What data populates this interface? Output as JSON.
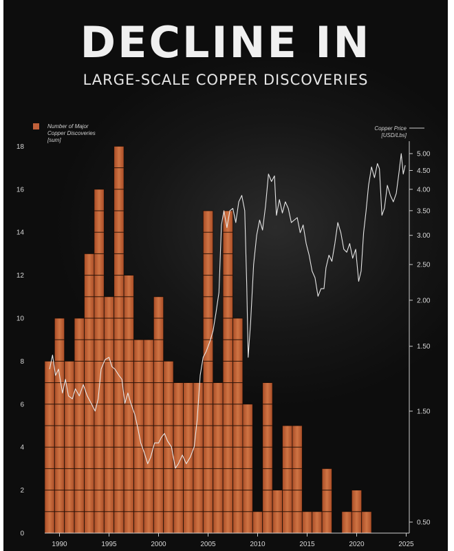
{
  "title": "DECLINE IN",
  "subtitle": "LARGE-SCALE COPPER DISCOVERIES",
  "colors": {
    "bar": "#b8582e",
    "bar_light": "#cf7444",
    "price_line": "#e8e8e8",
    "background": "#121212"
  },
  "chart_data": {
    "type": "bar",
    "x": [
      1989,
      1990,
      1991,
      1992,
      1993,
      1994,
      1995,
      1996,
      1997,
      1998,
      1999,
      2000,
      2001,
      2002,
      2003,
      2004,
      2005,
      2006,
      2007,
      2008,
      2009,
      2010,
      2011,
      2012,
      2013,
      2014,
      2015,
      2016,
      2017,
      2018,
      2019,
      2020,
      2021,
      2022,
      2023,
      2024
    ],
    "series": [
      {
        "name": "Number of Major Copper Discoveries [sum]",
        "axis": "left",
        "values": [
          8,
          10,
          8,
          10,
          13,
          16,
          11,
          18,
          12,
          9,
          9,
          11,
          8,
          7,
          7,
          7,
          15,
          7,
          15,
          10,
          6,
          1,
          7,
          2,
          5,
          5,
          1,
          1,
          3,
          0,
          1,
          2,
          1,
          0,
          0,
          0
        ]
      },
      {
        "name": "Copper Price [USD/Lbs]",
        "axis": "right",
        "points": [
          [
            1989.0,
            1.3
          ],
          [
            1989.3,
            1.42
          ],
          [
            1989.6,
            1.25
          ],
          [
            1989.9,
            1.3
          ],
          [
            1990.3,
            1.12
          ],
          [
            1990.6,
            1.22
          ],
          [
            1990.9,
            1.1
          ],
          [
            1991.3,
            1.08
          ],
          [
            1991.6,
            1.15
          ],
          [
            1992.0,
            1.1
          ],
          [
            1992.4,
            1.18
          ],
          [
            1992.8,
            1.1
          ],
          [
            1993.2,
            1.05
          ],
          [
            1993.6,
            1.0
          ],
          [
            1993.9,
            1.08
          ],
          [
            1994.2,
            1.3
          ],
          [
            1994.6,
            1.38
          ],
          [
            1995.0,
            1.4
          ],
          [
            1995.3,
            1.32
          ],
          [
            1995.6,
            1.3
          ],
          [
            1996.0,
            1.25
          ],
          [
            1996.3,
            1.22
          ],
          [
            1996.6,
            1.05
          ],
          [
            1996.9,
            1.12
          ],
          [
            1997.2,
            1.05
          ],
          [
            1997.6,
            0.98
          ],
          [
            1997.9,
            0.9
          ],
          [
            1998.2,
            0.82
          ],
          [
            1998.5,
            0.78
          ],
          [
            1998.9,
            0.72
          ],
          [
            1999.2,
            0.75
          ],
          [
            1999.6,
            0.82
          ],
          [
            2000.0,
            0.82
          ],
          [
            2000.3,
            0.85
          ],
          [
            2000.6,
            0.87
          ],
          [
            2000.9,
            0.83
          ],
          [
            2001.3,
            0.8
          ],
          [
            2001.7,
            0.7
          ],
          [
            2002.0,
            0.72
          ],
          [
            2002.4,
            0.76
          ],
          [
            2002.8,
            0.72
          ],
          [
            2003.2,
            0.75
          ],
          [
            2003.6,
            0.8
          ],
          [
            2003.9,
            0.95
          ],
          [
            2004.2,
            1.25
          ],
          [
            2004.5,
            1.4
          ],
          [
            2004.8,
            1.45
          ],
          [
            2005.2,
            1.55
          ],
          [
            2005.5,
            1.65
          ],
          [
            2005.8,
            1.85
          ],
          [
            2006.1,
            2.1
          ],
          [
            2006.35,
            3.2
          ],
          [
            2006.6,
            3.5
          ],
          [
            2006.9,
            3.15
          ],
          [
            2007.2,
            3.5
          ],
          [
            2007.5,
            3.55
          ],
          [
            2007.8,
            3.25
          ],
          [
            2008.1,
            3.7
          ],
          [
            2008.4,
            3.85
          ],
          [
            2008.7,
            3.5
          ],
          [
            2008.9,
            2.2
          ],
          [
            2009.05,
            1.4
          ],
          [
            2009.3,
            1.75
          ],
          [
            2009.6,
            2.5
          ],
          [
            2009.9,
            3.0
          ],
          [
            2010.2,
            3.3
          ],
          [
            2010.5,
            3.1
          ],
          [
            2010.8,
            3.6
          ],
          [
            2011.1,
            4.4
          ],
          [
            2011.4,
            4.2
          ],
          [
            2011.7,
            4.35
          ],
          [
            2011.9,
            3.4
          ],
          [
            2012.2,
            3.75
          ],
          [
            2012.5,
            3.45
          ],
          [
            2012.8,
            3.7
          ],
          [
            2013.1,
            3.55
          ],
          [
            2013.4,
            3.25
          ],
          [
            2013.7,
            3.3
          ],
          [
            2014.0,
            3.35
          ],
          [
            2014.3,
            3.05
          ],
          [
            2014.6,
            3.2
          ],
          [
            2014.9,
            2.85
          ],
          [
            2015.2,
            2.65
          ],
          [
            2015.5,
            2.4
          ],
          [
            2015.8,
            2.3
          ],
          [
            2016.1,
            2.05
          ],
          [
            2016.4,
            2.15
          ],
          [
            2016.7,
            2.15
          ],
          [
            2016.9,
            2.45
          ],
          [
            2017.2,
            2.65
          ],
          [
            2017.5,
            2.55
          ],
          [
            2017.8,
            2.85
          ],
          [
            2018.1,
            3.25
          ],
          [
            2018.4,
            3.05
          ],
          [
            2018.7,
            2.75
          ],
          [
            2019.0,
            2.7
          ],
          [
            2019.3,
            2.85
          ],
          [
            2019.6,
            2.6
          ],
          [
            2019.9,
            2.75
          ],
          [
            2020.2,
            2.25
          ],
          [
            2020.45,
            2.4
          ],
          [
            2020.7,
            3.05
          ],
          [
            2020.95,
            3.5
          ],
          [
            2021.2,
            4.1
          ],
          [
            2021.5,
            4.6
          ],
          [
            2021.8,
            4.3
          ],
          [
            2022.1,
            4.7
          ],
          [
            2022.3,
            4.55
          ],
          [
            2022.55,
            3.4
          ],
          [
            2022.8,
            3.55
          ],
          [
            2023.1,
            4.1
          ],
          [
            2023.4,
            3.85
          ],
          [
            2023.7,
            3.7
          ],
          [
            2024.0,
            3.9
          ],
          [
            2024.3,
            4.5
          ],
          [
            2024.5,
            5.0
          ],
          [
            2024.7,
            4.4
          ],
          [
            2024.9,
            4.65
          ]
        ]
      }
    ],
    "x_ticks": [
      "1990",
      "1995",
      "2000",
      "2005",
      "2010",
      "2015",
      "2020",
      "2025"
    ],
    "y_left_ticks": [
      "0",
      "2",
      "4",
      "6",
      "8",
      "10",
      "12",
      "14",
      "16",
      "18"
    ],
    "y_right_ticks": [
      "0.50",
      "1.50",
      "1.50",
      "2.00",
      "2.50",
      "3.00",
      "3.50",
      "4.00",
      "4.50",
      "5.00"
    ],
    "ylim": [
      0,
      18
    ],
    "legend_left": [
      "Number of Major",
      "Copper Discoveries",
      "[sum]"
    ],
    "legend_right": [
      "Copper Price",
      "[USD/Lbs]"
    ],
    "grid": false
  }
}
